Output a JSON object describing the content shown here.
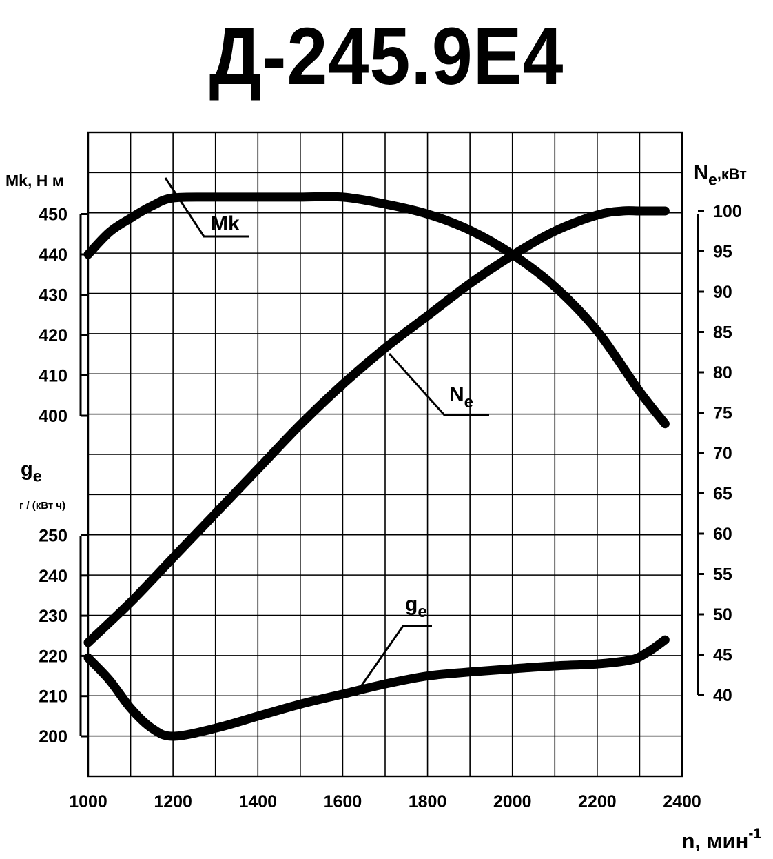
{
  "title": "Д-245.9Е4",
  "chart_data": {
    "type": "line",
    "title": "Д-245.9Е4",
    "xlabel": "n, мин",
    "xlabel_sup": "-1",
    "xlim": [
      1000,
      2400
    ],
    "xticks": [
      "1000",
      "1200",
      "1400",
      "1600",
      "1800",
      "2000",
      "2200",
      "2400"
    ],
    "axes": {
      "torque": {
        "label": "Mk, Н м",
        "ylim": [
          400,
          450
        ],
        "ticks": [
          "400",
          "410",
          "420",
          "430",
          "440",
          "450"
        ]
      },
      "power": {
        "label_main": "N",
        "label_sub": "e",
        "label_unit": ",кВт",
        "ylim": [
          40,
          100
        ],
        "ticks": [
          "40",
          "45",
          "50",
          "55",
          "60",
          "65",
          "70",
          "75",
          "80",
          "85",
          "90",
          "95",
          "100"
        ]
      },
      "fuel": {
        "label_main": "g",
        "label_sub": "e",
        "label_unit": "г / (кВт ч)",
        "ylim": [
          200,
          250
        ],
        "ticks": [
          "200",
          "210",
          "220",
          "230",
          "240",
          "250"
        ]
      }
    },
    "series": [
      {
        "name": "Mk",
        "label_main": "Mk",
        "label_sub": "",
        "axis": "torque",
        "x": [
          1000,
          1050,
          1100,
          1150,
          1200,
          1300,
          1400,
          1500,
          1600,
          1700,
          1800,
          1900,
          2000,
          2100,
          2200,
          2300,
          2360
        ],
        "y": [
          440,
          445.5,
          449,
          452,
          454,
          454.2,
          454.2,
          454.2,
          454.2,
          452.5,
          450,
          446,
          440,
          432,
          421,
          406,
          398
        ]
      },
      {
        "name": "Ne",
        "label_main": "N",
        "label_sub": "e",
        "axis": "power",
        "x": [
          1000,
          1100,
          1200,
          1300,
          1400,
          1500,
          1600,
          1700,
          1800,
          1900,
          2000,
          2100,
          2200,
          2260,
          2300,
          2360
        ],
        "y": [
          46.5,
          51.5,
          57,
          62.5,
          68,
          73.5,
          78.5,
          83,
          87,
          91,
          94.5,
          97.5,
          99.5,
          100,
          100,
          100
        ]
      },
      {
        "name": "ge",
        "label_main": "g",
        "label_sub": "e",
        "axis": "fuel",
        "x": [
          1000,
          1050,
          1100,
          1150,
          1200,
          1300,
          1400,
          1500,
          1600,
          1700,
          1800,
          1900,
          2000,
          2100,
          2200,
          2280,
          2320,
          2360
        ],
        "y": [
          219.5,
          214,
          207,
          202,
          200,
          202,
          205,
          208,
          210.5,
          213,
          215,
          216,
          216.8,
          217.5,
          218,
          219,
          221,
          224
        ]
      }
    ],
    "grid": true,
    "legend": "none"
  }
}
